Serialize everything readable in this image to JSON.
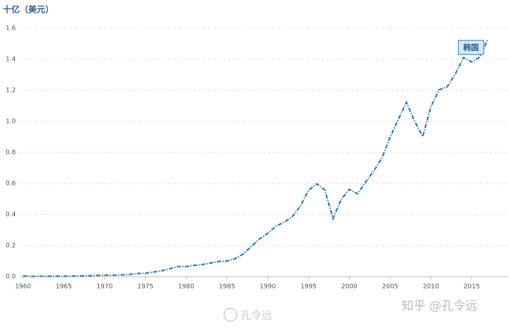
{
  "chart_data": {
    "type": "line",
    "title": "十亿（美元）",
    "x": [
      1960,
      1961,
      1962,
      1963,
      1964,
      1965,
      1966,
      1967,
      1968,
      1969,
      1970,
      1971,
      1972,
      1973,
      1974,
      1975,
      1976,
      1977,
      1978,
      1979,
      1980,
      1981,
      1982,
      1983,
      1984,
      1985,
      1986,
      1987,
      1988,
      1989,
      1990,
      1991,
      1992,
      1993,
      1994,
      1995,
      1996,
      1997,
      1998,
      1999,
      2000,
      2001,
      2002,
      2003,
      2004,
      2005,
      2006,
      2007,
      2008,
      2009,
      2010,
      2011,
      2012,
      2013,
      2014,
      2015,
      2016,
      2017
    ],
    "series": [
      {
        "name": "韩国",
        "color": "#2e7db5",
        "values": [
          0.004,
          0.002,
          0.002,
          0.003,
          0.003,
          0.003,
          0.004,
          0.005,
          0.006,
          0.008,
          0.009,
          0.01,
          0.011,
          0.014,
          0.02,
          0.022,
          0.03,
          0.038,
          0.051,
          0.065,
          0.065,
          0.073,
          0.078,
          0.088,
          0.098,
          0.101,
          0.116,
          0.146,
          0.196,
          0.243,
          0.279,
          0.325,
          0.35,
          0.386,
          0.455,
          0.556,
          0.598,
          0.558,
          0.374,
          0.498,
          0.562,
          0.533,
          0.609,
          0.681,
          0.765,
          0.898,
          1.012,
          1.123,
          1.002,
          0.902,
          1.095,
          1.203,
          1.223,
          1.306,
          1.411,
          1.383,
          1.415,
          1.531
        ]
      }
    ],
    "xlim": [
      1959.6,
      2019.4
    ],
    "xticks": [
      1960,
      1965,
      1970,
      1975,
      1980,
      1985,
      1990,
      1995,
      2000,
      2005,
      2010,
      2015
    ],
    "ylim": [
      0,
      1.6
    ],
    "yticks": [
      {
        "value": 0,
        "label": "0.0"
      },
      0.2,
      0.4,
      0.6,
      0.8,
      {
        "value": 1,
        "label": "1.0"
      },
      1.2,
      1.4,
      1.6
    ],
    "grid": true
  },
  "watermarks": [
    "孔令远",
    "知乎 @孔令远"
  ]
}
